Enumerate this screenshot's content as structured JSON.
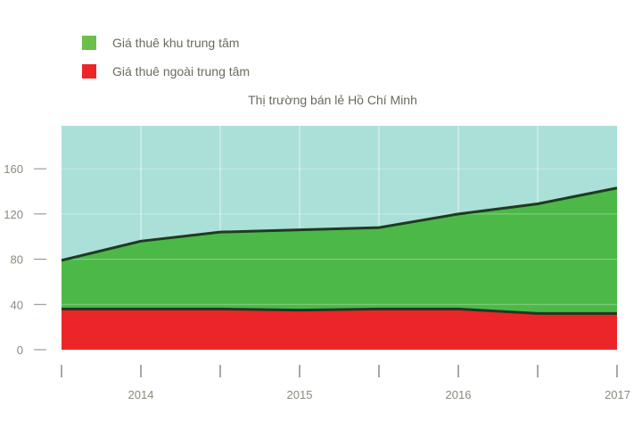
{
  "chart_data": {
    "type": "area",
    "title": "Thị trường bán lẻ Hồ Chí Minh",
    "xlabel": "",
    "ylabel": "",
    "x": [
      0,
      1,
      2,
      3,
      4,
      5,
      6,
      7
    ],
    "x_tick_labels": [
      {
        "at": 1,
        "label": "2014"
      },
      {
        "at": 3,
        "label": "2015"
      },
      {
        "at": 5,
        "label": "2016"
      },
      {
        "at": 7,
        "label": "2017"
      }
    ],
    "y_ticks": [
      0,
      40,
      80,
      120,
      160
    ],
    "ylim": [
      0,
      198
    ],
    "grid": true,
    "legend_position": "top-left",
    "background_color": "#abe0d8",
    "series": [
      {
        "name": "Giá thuê khu trung tâm",
        "color": "#4cb848",
        "values": [
          79,
          96,
          104,
          106,
          108,
          120,
          129,
          143
        ]
      },
      {
        "name": "Giá thuê ngoài trung tâm",
        "color": "#ec2628",
        "values": [
          36,
          36,
          36,
          35,
          36,
          36,
          32,
          32
        ]
      }
    ]
  }
}
